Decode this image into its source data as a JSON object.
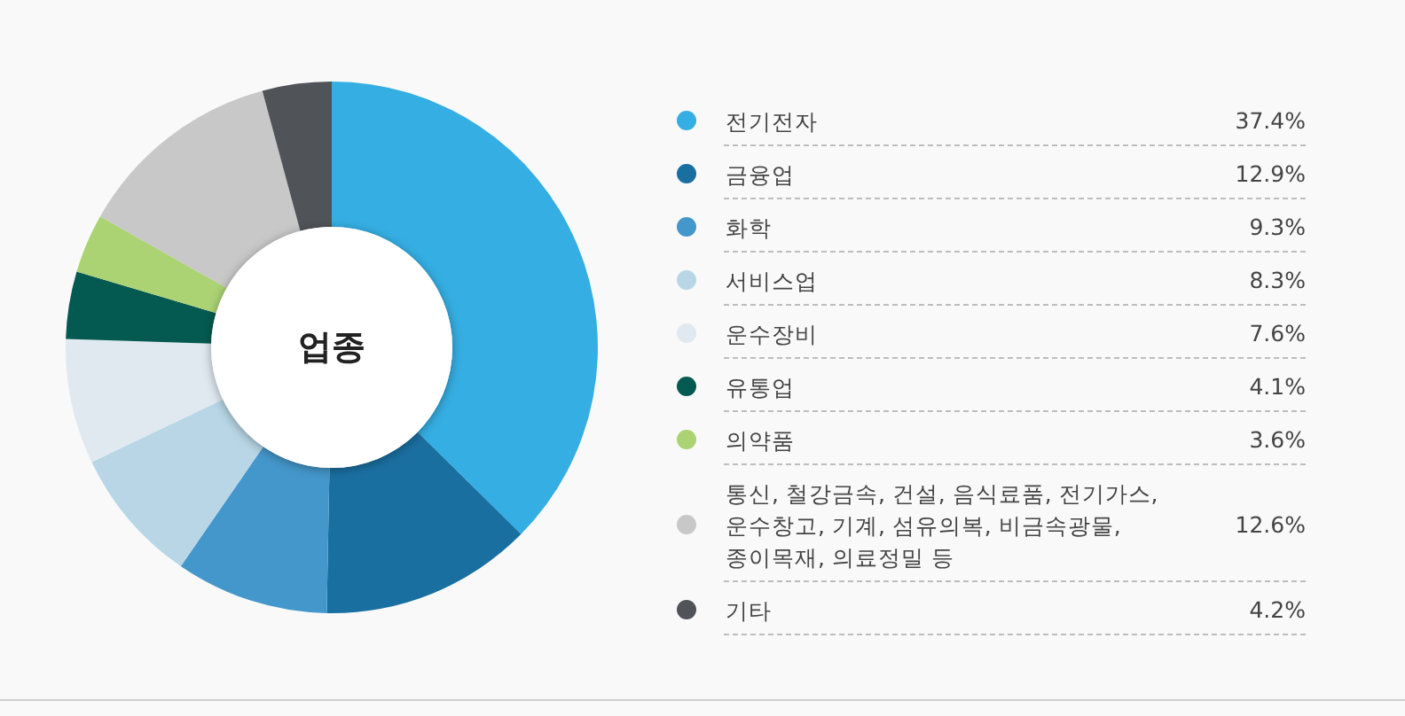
{
  "chart_data": {
    "type": "donut",
    "title": "업종",
    "categories": [
      "전기전자",
      "금융업",
      "화학",
      "서비스업",
      "운수장비",
      "유통업",
      "의약품",
      "통신, 철강금속, 건설, 음식료품, 전기가스, 운수창고, 기계, 섬유의복, 비금속광물, 종이목재, 의료정밀 등",
      "기타"
    ],
    "values": [
      37.4,
      12.9,
      9.3,
      8.3,
      7.6,
      4.1,
      3.6,
      12.6,
      4.2
    ],
    "colors": [
      "#35aee3",
      "#1a6fa1",
      "#4497cb",
      "#b8d6e6",
      "#e0e9f0",
      "#045a50",
      "#abd373",
      "#c8c8c8",
      "#505458"
    ],
    "value_labels": [
      "37.4%",
      "12.9%",
      "9.3%",
      "8.3%",
      "7.6%",
      "4.1%",
      "3.6%",
      "12.6%",
      "4.2%"
    ],
    "legend": "right"
  }
}
